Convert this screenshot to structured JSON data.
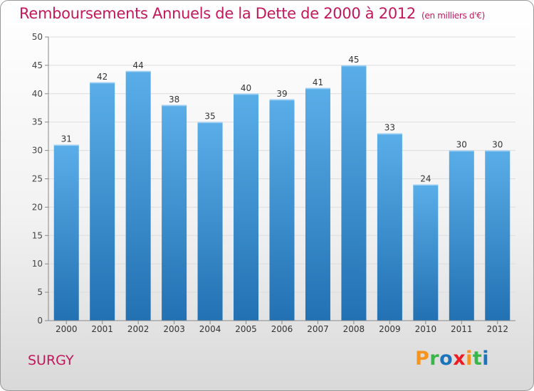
{
  "header": {
    "title": "Remboursements Annuels de la Dette de 2000 à 2012",
    "unit": "(en milliers d'€)"
  },
  "footer": {
    "commune": "SURGY",
    "logo_letters": [
      "P",
      "r",
      "o",
      "x",
      "i",
      "t",
      "i"
    ],
    "logo_colors": [
      "#f7941d",
      "#39b54a",
      "#1c75bc",
      "#ed1c24",
      "#f7941d",
      "#39b54a",
      "#1c75bc"
    ]
  },
  "colors": {
    "bar_top": "#5aaee8",
    "bar_bottom": "#2271b3",
    "accent": "#c2185b"
  },
  "chart_data": {
    "type": "bar",
    "title": "Remboursements Annuels de la Dette de 2000 à 2012",
    "xlabel": "",
    "ylabel": "",
    "ylim": [
      0,
      50
    ],
    "yticks": [
      0,
      5,
      10,
      15,
      20,
      25,
      30,
      35,
      40,
      45,
      50
    ],
    "grid": true,
    "categories": [
      "2000",
      "2001",
      "2002",
      "2003",
      "2004",
      "2005",
      "2006",
      "2007",
      "2008",
      "2009",
      "2010",
      "2011",
      "2012"
    ],
    "values": [
      31,
      42,
      44,
      38,
      35,
      40,
      39,
      41,
      45,
      33,
      24,
      30,
      30
    ]
  }
}
